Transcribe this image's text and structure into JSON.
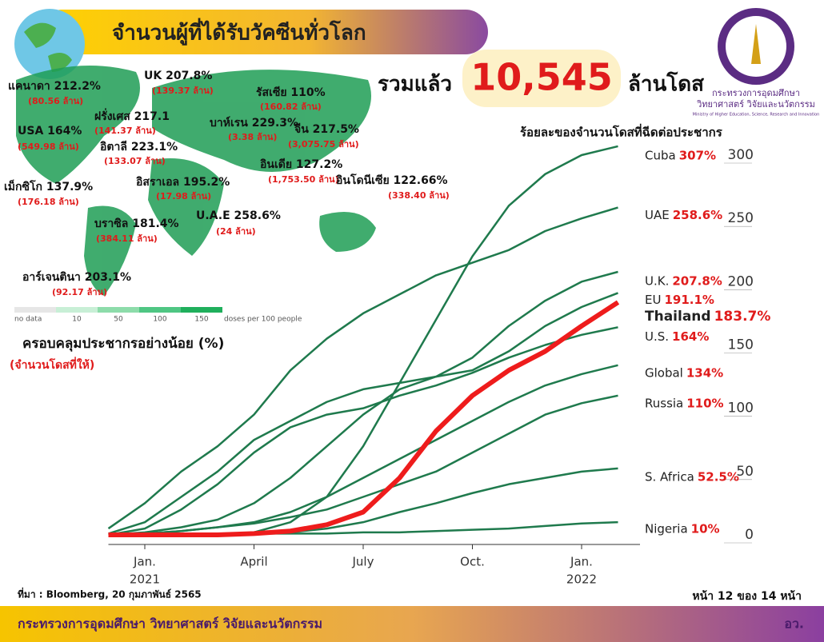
{
  "header": {
    "title": "จำนวนผู้ที่ได้รับวัคซีนทั่วโลก",
    "total_prefix": "รวมแล้ว",
    "total": "10,545",
    "total_unit": "ล้านโดส"
  },
  "logo": {
    "line1": "กระทรวงการอุดมศึกษา",
    "line2": "วิทยาศาสตร์ วิจัยและนวัตกรรม",
    "line3": "Ministry of Higher Education, Science, Research and Innovation"
  },
  "map": {
    "labels": [
      {
        "name_value": "แคนาดา 212.2%",
        "doses": "(80.56 ล้าน)"
      },
      {
        "name_value": "UK 207.8%",
        "doses": "(139.37 ล้าน)"
      },
      {
        "name_value": "รัสเซีย 110%",
        "doses": "(160.82 ล้าน)"
      },
      {
        "name_value": "USA 164%",
        "doses": "(549.98 ล้าน)"
      },
      {
        "name_value": "ฝรั่งเศส 217.1",
        "doses": "(141.37 ล้าน)"
      },
      {
        "name_value": "บาห์เรน 229.3%",
        "doses": "(3.38 ล้าน)"
      },
      {
        "name_value": "จีน 217.5%",
        "doses": "(3,075.75 ล้าน)"
      },
      {
        "name_value": "อิตาลี 223.1%",
        "doses": "(133.07 ล้าน)"
      },
      {
        "name_value": "เม็กซิโก 137.9%",
        "doses": "(176.18 ล้าน)"
      },
      {
        "name_value": "อิสราเอล 195.2%",
        "doses": "(17.98 ล้าน)"
      },
      {
        "name_value": "อินเดีย 127.2%",
        "doses": "(1,753.50 ล้าน)"
      },
      {
        "name_value": "อินโดนีเซีย 122.66%",
        "doses": "(338.40 ล้าน)"
      },
      {
        "name_value": "U.A.E 258.6%",
        "doses": "(24 ล้าน)"
      },
      {
        "name_value": "บราซิล 181.4%",
        "doses": "(384.11 ล้าน)"
      },
      {
        "name_value": "อาร์เจนตินา 203.1%",
        "doses": "(92.17 ล้าน)"
      }
    ],
    "legend": {
      "items": [
        "no data",
        "10",
        "50",
        "100",
        "150"
      ],
      "caption": "doses per 100 people"
    }
  },
  "chart_data": {
    "type": "line",
    "subtitle": "ร้อยละของจำนวนโดสที่ฉีดต่อประชากร",
    "y_label": "ครอบคลุมประชากรอย่างน้อย (%)",
    "y_sublabel": "(จำนวนโดสที่ให้)",
    "x": [
      "2020-12",
      "2021-01",
      "2021-02",
      "2021-03",
      "2021-04",
      "2021-05",
      "2021-06",
      "2021-07",
      "2021-08",
      "2021-09",
      "2021-10",
      "2021-11",
      "2021-12",
      "2022-01",
      "2022-02"
    ],
    "xticks": [
      {
        "value": "2021-01",
        "label": "Jan."
      },
      {
        "value": "2021-04",
        "label": "April"
      },
      {
        "value": "2021-07",
        "label": "July"
      },
      {
        "value": "2021-10",
        "label": "Oct."
      },
      {
        "value": "2022-01",
        "label": "Jan."
      }
    ],
    "year_labels": [
      {
        "value": "2021-01",
        "label": "2021"
      },
      {
        "value": "2022-01",
        "label": "2022"
      }
    ],
    "ylim": [
      0,
      300
    ],
    "yticks": [
      0,
      50,
      100,
      150,
      200,
      250,
      300
    ],
    "series": [
      {
        "name": "Cuba",
        "label": "307%",
        "color": "#1f7a4d",
        "values": [
          0,
          0,
          0,
          0,
          2,
          10,
          30,
          70,
          120,
          170,
          220,
          260,
          285,
          300,
          307
        ]
      },
      {
        "name": "UAE",
        "label": "258.6%",
        "color": "#1f7a4d",
        "values": [
          5,
          25,
          50,
          70,
          95,
          130,
          155,
          175,
          190,
          205,
          215,
          225,
          240,
          250,
          258.6
        ]
      },
      {
        "name": "U.K.",
        "label": "207.8%",
        "color": "#1f7a4d",
        "values": [
          1,
          10,
          30,
          50,
          75,
          90,
          105,
          115,
          120,
          125,
          140,
          165,
          185,
          200,
          207.8
        ]
      },
      {
        "name": "EU",
        "label": "191.1%",
        "color": "#1f7a4d",
        "values": [
          0,
          2,
          6,
          12,
          25,
          45,
          70,
          95,
          115,
          125,
          130,
          145,
          165,
          180,
          191.1
        ]
      },
      {
        "name": "Thailand",
        "label": "183.7%",
        "color": "#ee1c1c",
        "highlight": true,
        "values": [
          0,
          0,
          0,
          0,
          1,
          3,
          8,
          18,
          45,
          82,
          110,
          130,
          145,
          165,
          183.7
        ]
      },
      {
        "name": "U.S.",
        "label": "164%",
        "color": "#1f7a4d",
        "values": [
          0,
          5,
          20,
          40,
          65,
          85,
          95,
          100,
          110,
          118,
          128,
          140,
          150,
          158,
          164
        ]
      },
      {
        "name": "Global",
        "label": "134%",
        "color": "#1f7a4d",
        "values": [
          0,
          1,
          3,
          6,
          10,
          18,
          30,
          45,
          60,
          75,
          90,
          105,
          118,
          127,
          134
        ]
      },
      {
        "name": "Russia",
        "label": "110%",
        "color": "#1f7a4d",
        "values": [
          0,
          1,
          3,
          6,
          9,
          14,
          20,
          30,
          40,
          50,
          65,
          80,
          95,
          104,
          110
        ]
      },
      {
        "name": "S. Africa",
        "label": "52.5%",
        "color": "#1f7a4d",
        "values": [
          0,
          0,
          0,
          0,
          1,
          2,
          5,
          10,
          18,
          25,
          33,
          40,
          45,
          50,
          52.5
        ]
      },
      {
        "name": "Nigeria",
        "label": "10%",
        "color": "#1f7a4d",
        "values": [
          0,
          0,
          0,
          0,
          1,
          1,
          1,
          2,
          2,
          3,
          4,
          5,
          7,
          9,
          10
        ]
      }
    ]
  },
  "footer": {
    "source": "ที่มา : Bloomberg, 20 กุมภาพันธ์ 2565",
    "page": "หน้า 12 ของ 14 หน้า",
    "ministry": "กระทรวงการอุดมศึกษา วิทยาศาสตร์ วิจัยและนวัตกรรม",
    "abbr": "อว."
  }
}
